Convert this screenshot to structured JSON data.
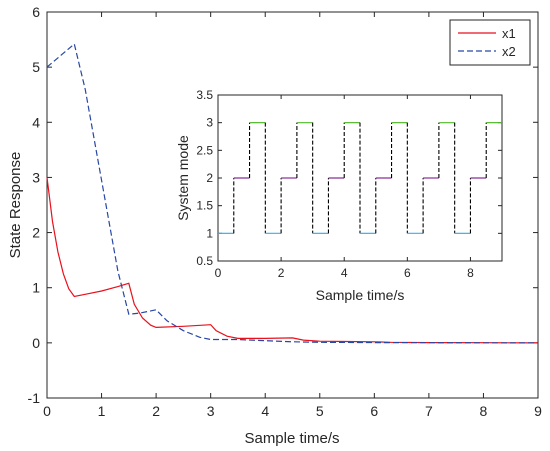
{
  "chart_data": [
    {
      "type": "line",
      "xlabel": "Sample time/s",
      "ylabel": "State Response",
      "xlim": [
        0,
        9
      ],
      "ylim": [
        -1,
        6
      ],
      "xticks": [
        0,
        1,
        2,
        3,
        4,
        5,
        6,
        7,
        8,
        9
      ],
      "yticks": [
        -1,
        0,
        1,
        2,
        3,
        4,
        5,
        6
      ],
      "grid": false,
      "legend_position": "top-right",
      "series": [
        {
          "name": "x1",
          "color": "#e8111d",
          "style": "solid",
          "points": [
            [
              0,
              3.0
            ],
            [
              0.1,
              2.2
            ],
            [
              0.2,
              1.65
            ],
            [
              0.3,
              1.25
            ],
            [
              0.4,
              0.98
            ],
            [
              0.5,
              0.84
            ],
            [
              0.7,
              0.88
            ],
            [
              1.0,
              0.94
            ],
            [
              1.3,
              1.02
            ],
            [
              1.5,
              1.08
            ],
            [
              1.6,
              0.7
            ],
            [
              1.75,
              0.45
            ],
            [
              1.9,
              0.32
            ],
            [
              2.0,
              0.28
            ],
            [
              2.5,
              0.3
            ],
            [
              3.0,
              0.33
            ],
            [
              3.1,
              0.22
            ],
            [
              3.3,
              0.12
            ],
            [
              3.5,
              0.08
            ],
            [
              4.0,
              0.08
            ],
            [
              4.5,
              0.09
            ],
            [
              4.7,
              0.05
            ],
            [
              5.0,
              0.03
            ],
            [
              5.5,
              0.025
            ],
            [
              6.0,
              0.02
            ],
            [
              6.3,
              0.01
            ],
            [
              7.0,
              0.005
            ],
            [
              8.0,
              0.002
            ],
            [
              9.0,
              0.0
            ]
          ]
        },
        {
          "name": "x2",
          "color": "#2747a4",
          "style": "dashed",
          "points": [
            [
              0,
              5.0
            ],
            [
              0.5,
              5.42
            ],
            [
              0.7,
              4.6
            ],
            [
              0.9,
              3.5
            ],
            [
              1.1,
              2.4
            ],
            [
              1.3,
              1.3
            ],
            [
              1.5,
              0.52
            ],
            [
              1.7,
              0.54
            ],
            [
              2.0,
              0.6
            ],
            [
              2.2,
              0.4
            ],
            [
              2.5,
              0.22
            ],
            [
              2.8,
              0.1
            ],
            [
              3.0,
              0.06
            ],
            [
              3.5,
              0.06
            ],
            [
              4.0,
              0.04
            ],
            [
              4.5,
              0.02
            ],
            [
              5.0,
              0.01
            ],
            [
              6.0,
              0.005
            ],
            [
              7.0,
              0.002
            ],
            [
              9.0,
              0.0
            ]
          ]
        }
      ]
    },
    {
      "type": "line",
      "xlabel": "Sample time/s",
      "ylabel": "System mode",
      "xlim": [
        0,
        9
      ],
      "ylim": [
        0.5,
        3.5
      ],
      "xticks": [
        0,
        2,
        4,
        6,
        8
      ],
      "yticks": [
        0.5,
        1,
        1.5,
        2,
        2.5,
        3,
        3.5
      ],
      "grid": false,
      "period": 1.5,
      "levels": [
        {
          "mode": 1,
          "start": 0.0,
          "end": 0.5,
          "color": "#3ab0e0"
        },
        {
          "mode": 2,
          "start": 0.5,
          "end": 1.0,
          "color": "#8a2d9a"
        },
        {
          "mode": 3,
          "start": 1.0,
          "end": 1.5,
          "color": "#50b82a"
        }
      ],
      "transition_color": "#000000",
      "transition_style": "dashed"
    }
  ],
  "legend": {
    "items": [
      {
        "label": "x1",
        "color": "#e8111d",
        "style": "solid"
      },
      {
        "label": "x2",
        "color": "#2747a4",
        "style": "dashed"
      }
    ]
  }
}
